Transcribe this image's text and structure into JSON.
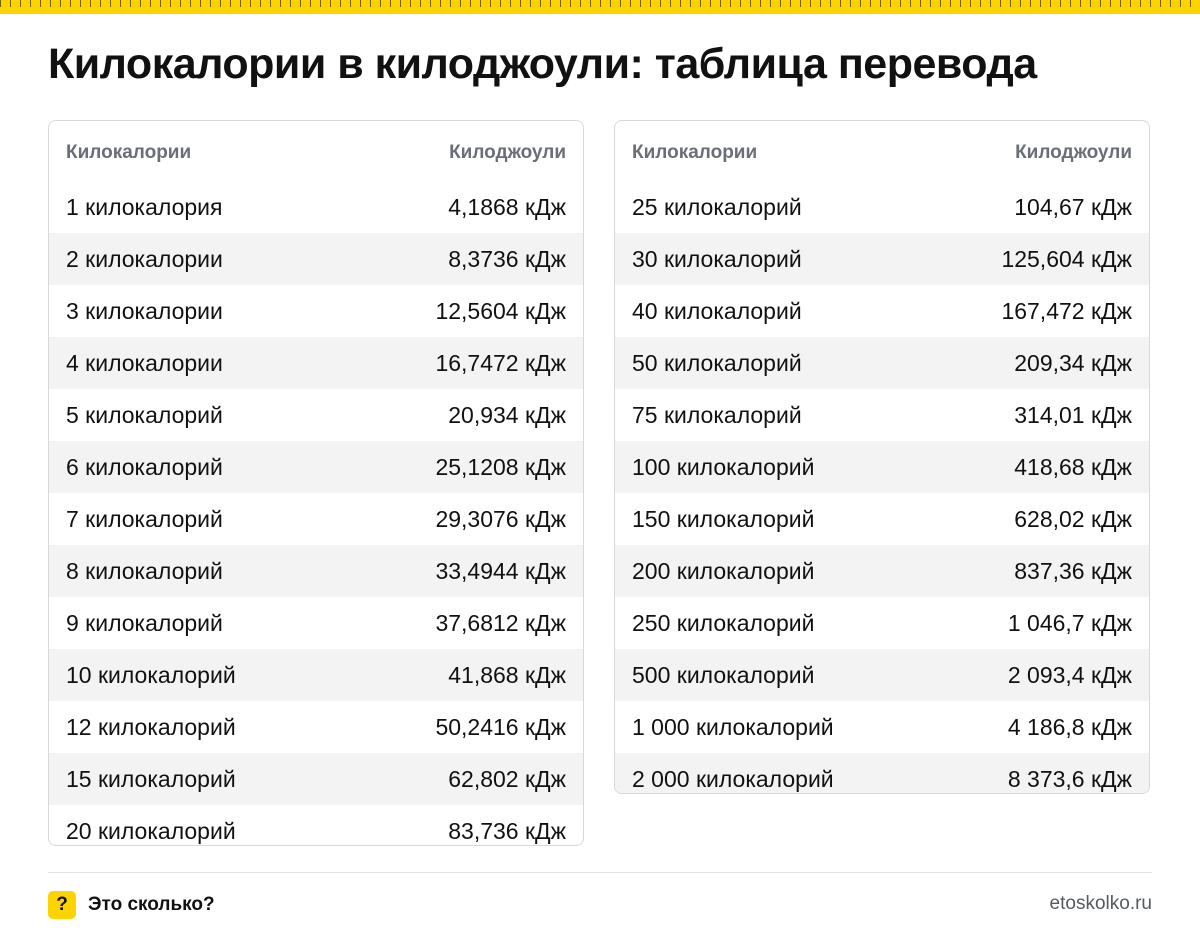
{
  "title": "Килокалории в килоджоули: таблица перевода",
  "table_header": {
    "kcal": "Килокалории",
    "kj": "Килоджоули"
  },
  "left_table": [
    {
      "kcal": "1 килокалория",
      "kj": "4,1868 кДж"
    },
    {
      "kcal": "2 килокалории",
      "kj": "8,3736 кДж"
    },
    {
      "kcal": "3 килокалории",
      "kj": "12,5604 кДж"
    },
    {
      "kcal": "4 килокалории",
      "kj": "16,7472 кДж"
    },
    {
      "kcal": "5 килокалорий",
      "kj": "20,934 кДж"
    },
    {
      "kcal": "6 килокалорий",
      "kj": "25,1208 кДж"
    },
    {
      "kcal": "7 килокалорий",
      "kj": "29,3076 кДж"
    },
    {
      "kcal": "8 килокалорий",
      "kj": "33,4944 кДж"
    },
    {
      "kcal": "9 килокалорий",
      "kj": "37,6812 кДж"
    },
    {
      "kcal": "10 килокалорий",
      "kj": "41,868 кДж"
    },
    {
      "kcal": "12 килокалорий",
      "kj": "50,2416 кДж"
    },
    {
      "kcal": "15 килокалорий",
      "kj": "62,802 кДж"
    },
    {
      "kcal": "20 килокалорий",
      "kj": "83,736 кДж"
    }
  ],
  "right_table": [
    {
      "kcal": "25 килокалорий",
      "kj": "104,67 кДж"
    },
    {
      "kcal": "30 килокалорий",
      "kj": "125,604 кДж"
    },
    {
      "kcal": "40 килокалорий",
      "kj": "167,472 кДж"
    },
    {
      "kcal": "50 килокалорий",
      "kj": "209,34 кДж"
    },
    {
      "kcal": "75 килокалорий",
      "kj": "314,01 кДж"
    },
    {
      "kcal": "100 килокалорий",
      "kj": "418,68 кДж"
    },
    {
      "kcal": "150 килокалорий",
      "kj": "628,02 кДж"
    },
    {
      "kcal": "200 килокалорий",
      "kj": "837,36 кДж"
    },
    {
      "kcal": "250 килокалорий",
      "kj": "1 046,7 кДж"
    },
    {
      "kcal": "500 килокалорий",
      "kj": "2 093,4 кДж"
    },
    {
      "kcal": "1 000 килокалорий",
      "kj": "4 186,8 кДж"
    },
    {
      "kcal": "2 000 килокалорий",
      "kj": "8 373,6 кДж"
    }
  ],
  "footer": {
    "logo_glyph": "?",
    "brand": "Это сколько?",
    "site": "etoskolko.ru"
  },
  "colors": {
    "accent": "#FDD302",
    "border": "#d6d8dc",
    "stripe": "#f3f3f4",
    "header_text": "#6a6e76"
  }
}
